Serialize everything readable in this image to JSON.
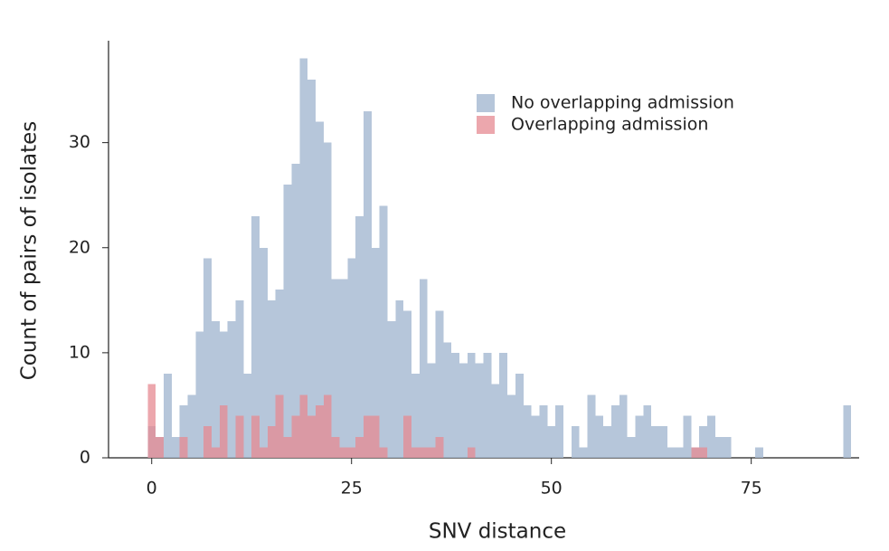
{
  "chart_data": {
    "type": "histogram",
    "xlabel": "SNV distance",
    "ylabel": "Count of pairs of isolates",
    "bins": [
      -0.5,
      0.5,
      1.5,
      2.5,
      3.5,
      4.5,
      5.5,
      6.5,
      7.5,
      8.5,
      9.5,
      10.5,
      11.5,
      12.5,
      13.5,
      14.5,
      15.5,
      16.5,
      17.5,
      18.5,
      19.5,
      20.5,
      21.5,
      22.5,
      23.5,
      24.5,
      25.5,
      26.5,
      27.5,
      28.5,
      29.5,
      30.5,
      31.5,
      32.5,
      33.5,
      34.5,
      35.5,
      36.5,
      37.5,
      38.5,
      39.5,
      40.5,
      41.5,
      42.5,
      43.5,
      44.5,
      45.5,
      46.5,
      47.5,
      48.5,
      49.5,
      50.5,
      51.5,
      52.5,
      53.5,
      54.5,
      55.5,
      56.5,
      57.5,
      58.5,
      59.5,
      60.5,
      61.5,
      62.5,
      63.5,
      64.5,
      65.5,
      66.5,
      67.5,
      68.5,
      69.5,
      70.5,
      71.5,
      72.5,
      73.5,
      74.5,
      75.5,
      76.5,
      77.5,
      78.5,
      79.5,
      80.5,
      81.5,
      82.5,
      83.5,
      84.5,
      85.5,
      86.5,
      87.5
    ],
    "series": [
      {
        "name": "No overlapping admission",
        "color": "#a9bcd3",
        "values": [
          3,
          2,
          8,
          2,
          5,
          6,
          12,
          19,
          13,
          12,
          13,
          15,
          8,
          23,
          20,
          15,
          16,
          26,
          28,
          38,
          36,
          32,
          30,
          17,
          17,
          19,
          23,
          33,
          20,
          24,
          13,
          15,
          14,
          8,
          17,
          9,
          14,
          11,
          10,
          9,
          10,
          9,
          10,
          7,
          10,
          6,
          8,
          5,
          4,
          5,
          3,
          5,
          0,
          3,
          1,
          6,
          4,
          3,
          5,
          6,
          2,
          4,
          5,
          3,
          3,
          1,
          1,
          4,
          1,
          3,
          4,
          2,
          2,
          0,
          0,
          0,
          1,
          0,
          0,
          0,
          0,
          0,
          0,
          0,
          0,
          0,
          0,
          5
        ]
      },
      {
        "name": "Overlapping admission",
        "color": "#e58a92",
        "values": [
          7,
          2,
          0,
          0,
          2,
          0,
          0,
          3,
          1,
          5,
          0,
          4,
          0,
          4,
          1,
          3,
          6,
          2,
          4,
          6,
          4,
          5,
          6,
          2,
          1,
          1,
          2,
          4,
          4,
          1,
          0,
          0,
          4,
          1,
          1,
          1,
          2,
          0,
          0,
          0,
          1,
          0,
          0,
          0,
          0,
          0,
          0,
          0,
          0,
          0,
          0,
          0,
          0,
          0,
          0,
          0,
          0,
          0,
          0,
          0,
          0,
          0,
          0,
          0,
          0,
          0,
          0,
          0,
          1,
          1,
          0,
          0,
          0,
          0,
          0,
          0,
          0,
          0,
          0,
          0,
          0,
          0,
          0,
          0,
          0,
          0,
          0,
          0
        ]
      }
    ],
    "xlim": [
      -5.4,
      88.5
    ],
    "xticks": [
      0,
      25,
      50,
      75
    ],
    "ylim": [
      0,
      39.7
    ],
    "yticks": [
      0,
      10,
      20,
      30
    ],
    "legend": "upper right"
  }
}
